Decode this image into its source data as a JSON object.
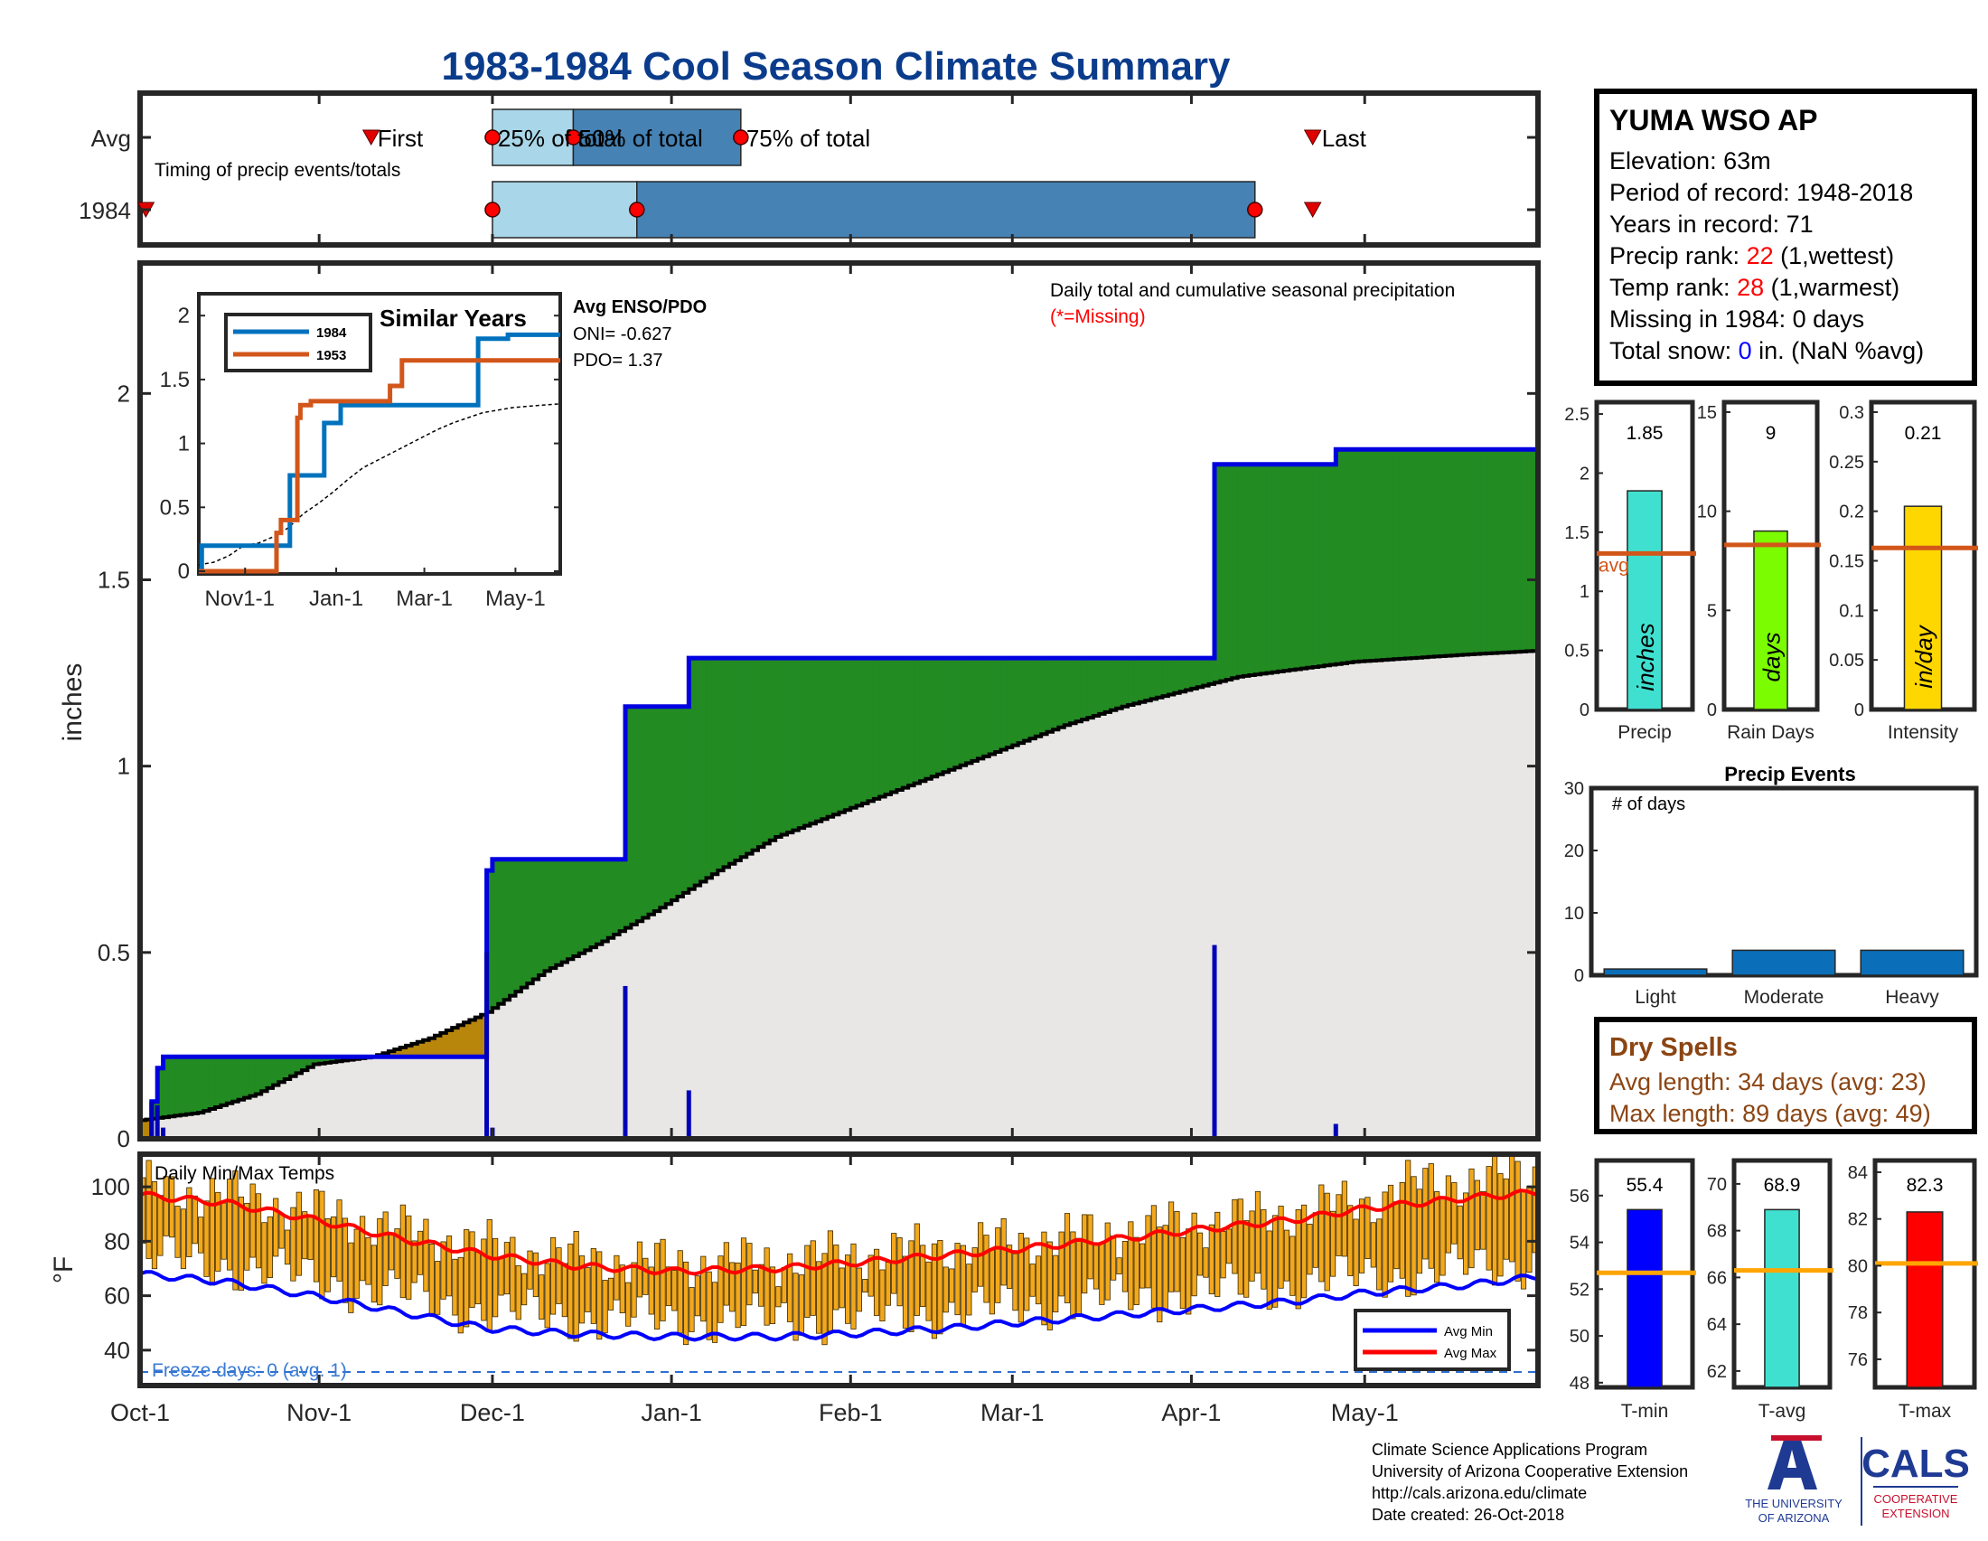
{
  "title": "1983-1984 Cool Season Climate Summary",
  "colors": {
    "title_blue": "#0b3c8c",
    "light_blue": "#a9d6e8",
    "mid_blue": "#4682b4",
    "green": "#228b22",
    "gray_fill": "#e8e7e6",
    "deficit_brown": "#b8860b",
    "cum_blue": "#0000e0",
    "orange_line": "#d2561a",
    "red": "#ff0000",
    "brown_text": "#8b4513",
    "temp_bar": "#f3a81c"
  },
  "timing": {
    "label": "Timing of precip events/totals",
    "rows": [
      "Avg",
      "1984"
    ],
    "avg_markers": {
      "first": "First",
      "p25": "25% of total",
      "p50": "50% of total",
      "p75": "75% of total",
      "last": "Last"
    },
    "avg_days": {
      "first": 40,
      "p25": 61,
      "p50": 75,
      "p75": 104,
      "last": 203
    },
    "y1984_days": {
      "first": 1,
      "p25": 61,
      "p50": 86,
      "p75": 193,
      "last": 203
    }
  },
  "station": {
    "name": "YUMA WSO AP",
    "elevation": "Elevation: 63m",
    "period": "Period of record: 1948-2018",
    "years": "Years in record: 71",
    "precip_rank_label": "Precip rank: ",
    "precip_rank_value": "22",
    "precip_rank_note": " (1,wettest)",
    "temp_rank_label": "Temp rank: ",
    "temp_rank_value": "28",
    "temp_rank_note": " (1,warmest)",
    "missing": "Missing in 1984: 0 days",
    "snow_label": "Total snow: ",
    "snow_value": "0",
    "snow_note": " in. (NaN %avg)"
  },
  "main_panel": {
    "ylabel": "inches",
    "annotation": "Daily total and cumulative seasonal precipitation",
    "missing_note": "(*=Missing)",
    "yticks": [
      "0",
      "0.5",
      "1",
      "1.5",
      "2"
    ],
    "xticks": [
      "Oct-1",
      "Nov-1",
      "Dec-1",
      "Jan-1",
      "Feb-1",
      "Mar-1",
      "Apr-1",
      "May-1"
    ],
    "xtick_days": [
      0,
      31,
      61,
      92,
      123,
      151,
      182,
      212
    ],
    "ylim": [
      0,
      2.35
    ],
    "xlim": [
      0,
      242
    ]
  },
  "inset": {
    "title": "Similar Years",
    "legend": [
      "1984",
      "1953"
    ],
    "yticks": [
      "0",
      "0.5",
      "1",
      "1.5",
      "2"
    ],
    "xticks": [
      "Nov1-1",
      "Jan-1",
      "Mar-1",
      "May-1"
    ],
    "enso_title": "Avg ENSO/PDO",
    "oni": "ONI= -0.627",
    "pdo": "PDO= 1.37"
  },
  "side_bars": [
    {
      "label": "Precip",
      "unit": "inches",
      "value_text": "1.85",
      "value": 1.85,
      "avg": 1.32,
      "avg_label": "avg",
      "ymax": 2.6,
      "ticks": [
        "0",
        "0.5",
        "1",
        "1.5",
        "2",
        "2.5"
      ],
      "color": "#40e0d0"
    },
    {
      "label": "Rain Days",
      "unit": "days",
      "value_text": "9",
      "value": 9,
      "avg": 8.3,
      "ymax": 15.5,
      "ticks": [
        "0",
        "5",
        "10",
        "15"
      ],
      "color": "#7cfc00"
    },
    {
      "label": "Intensity",
      "unit": "in/day",
      "value_text": "0.21",
      "value": 0.205,
      "avg": 0.163,
      "ymax": 0.31,
      "ticks": [
        "0",
        "0.05",
        "0.1",
        "0.15",
        "0.2",
        "0.25",
        "0.3"
      ],
      "color": "#ffd700"
    }
  ],
  "precip_events": {
    "title": "Precip Events",
    "ylabel": "# of days",
    "categories": [
      "Light",
      "Moderate",
      "Heavy"
    ],
    "values": [
      1,
      4,
      4
    ],
    "yticks": [
      "0",
      "10",
      "20",
      "30"
    ],
    "ymax": 30
  },
  "dry_spells": {
    "title": "Dry Spells",
    "avg": "Avg length: 34 days (avg: 23)",
    "max": "Max length: 89 days (avg: 49)"
  },
  "temp_panel": {
    "label": "Daily Min/Max Temps",
    "ylabel": "°F",
    "yticks": [
      "40",
      "60",
      "80",
      "100"
    ],
    "freeze": "Freeze days: 0 (avg. 1)",
    "legend": [
      "Avg Min",
      "Avg Max"
    ],
    "ylim": [
      27,
      112
    ]
  },
  "temp_bars": [
    {
      "label": "T-min",
      "value_text": "55.4",
      "value": 55.4,
      "avg": 52.7,
      "ymin": 47.8,
      "ymax": 57.5,
      "ticks": [
        "48",
        "50",
        "52",
        "54",
        "56"
      ],
      "color": "#0000ff"
    },
    {
      "label": "T-avg",
      "value_text": "68.9",
      "value": 68.9,
      "avg": 66.3,
      "ymin": 61.3,
      "ymax": 71.0,
      "ticks": [
        "62",
        "64",
        "66",
        "68",
        "70"
      ],
      "color": "#40e0d0"
    },
    {
      "label": "T-max",
      "value_text": "82.3",
      "value": 82.3,
      "avg": 80.1,
      "ymin": 74.8,
      "ymax": 84.5,
      "ticks": [
        "76",
        "78",
        "80",
        "82",
        "84"
      ],
      "color": "#ff0000"
    }
  ],
  "footer": {
    "line1": "Climate Science Applications Program",
    "line2": "University of Arizona Cooperative Extension",
    "line3": "http://cals.arizona.edu/climate",
    "line4": " Date created: 26-Oct-2018",
    "ua_line1": "THE UNIVERSITY",
    "ua_line2": "OF ARIZONA",
    "cals": "CALS",
    "cals_sub1": "COOPERATIVE",
    "cals_sub2": "EXTENSION"
  },
  "chart_data": {
    "type": "area",
    "title": "1983-1984 Cool Season Climate Summary",
    "ylabel": "inches",
    "x_unit": "day of season (0 = Oct-1)",
    "ylim": [
      0,
      2.35
    ],
    "daily_precip": [
      {
        "x": 2,
        "y": 0.1
      },
      {
        "x": 3,
        "y": 0.09
      },
      {
        "x": 4,
        "y": 0.03
      },
      {
        "x": 60,
        "y": 0.5
      },
      {
        "x": 61,
        "y": 0.03
      },
      {
        "x": 84,
        "y": 0.41
      },
      {
        "x": 95,
        "y": 0.13
      },
      {
        "x": 186,
        "y": 0.52
      },
      {
        "x": 207,
        "y": 0.04
      }
    ],
    "cumulative_1984": [
      {
        "x": 0,
        "y": 0.0
      },
      {
        "x": 2,
        "y": 0.1
      },
      {
        "x": 3,
        "y": 0.19
      },
      {
        "x": 4,
        "y": 0.22
      },
      {
        "x": 60,
        "y": 0.72
      },
      {
        "x": 61,
        "y": 0.75
      },
      {
        "x": 84,
        "y": 1.16
      },
      {
        "x": 95,
        "y": 1.29
      },
      {
        "x": 186,
        "y": 1.81
      },
      {
        "x": 207,
        "y": 1.85
      },
      {
        "x": 242,
        "y": 1.85
      }
    ],
    "cumulative_avg": [
      {
        "x": 0,
        "y": 0.05
      },
      {
        "x": 10,
        "y": 0.07
      },
      {
        "x": 20,
        "y": 0.12
      },
      {
        "x": 30,
        "y": 0.2
      },
      {
        "x": 40,
        "y": 0.22
      },
      {
        "x": 50,
        "y": 0.27
      },
      {
        "x": 60,
        "y": 0.34
      },
      {
        "x": 70,
        "y": 0.45
      },
      {
        "x": 80,
        "y": 0.53
      },
      {
        "x": 90,
        "y": 0.62
      },
      {
        "x": 100,
        "y": 0.72
      },
      {
        "x": 110,
        "y": 0.81
      },
      {
        "x": 120,
        "y": 0.87
      },
      {
        "x": 130,
        "y": 0.93
      },
      {
        "x": 140,
        "y": 0.99
      },
      {
        "x": 150,
        "y": 1.05
      },
      {
        "x": 160,
        "y": 1.11
      },
      {
        "x": 170,
        "y": 1.16
      },
      {
        "x": 180,
        "y": 1.2
      },
      {
        "x": 190,
        "y": 1.24
      },
      {
        "x": 200,
        "y": 1.26
      },
      {
        "x": 210,
        "y": 1.28
      },
      {
        "x": 220,
        "y": 1.29
      },
      {
        "x": 230,
        "y": 1.3
      },
      {
        "x": 242,
        "y": 1.31
      }
    ],
    "inset_series": [
      {
        "name": "1984",
        "points": [
          [
            0,
            0.0
          ],
          [
            2,
            0.2
          ],
          [
            60,
            0.2
          ],
          [
            61,
            0.75
          ],
          [
            84,
            1.16
          ],
          [
            95,
            1.3
          ],
          [
            186,
            1.3
          ],
          [
            187,
            1.82
          ],
          [
            207,
            1.85
          ],
          [
            242,
            1.85
          ]
        ]
      },
      {
        "name": "1953",
        "points": [
          [
            0,
            0.0
          ],
          [
            50,
            0.0
          ],
          [
            52,
            0.3
          ],
          [
            55,
            0.4
          ],
          [
            63,
            0.4
          ],
          [
            66,
            1.2
          ],
          [
            68,
            1.3
          ],
          [
            75,
            1.33
          ],
          [
            125,
            1.33
          ],
          [
            128,
            1.45
          ],
          [
            135,
            1.45
          ],
          [
            136,
            1.65
          ],
          [
            242,
            1.65
          ]
        ]
      }
    ],
    "avg_min": [
      {
        "x": 0,
        "y": 68
      },
      {
        "x": 15,
        "y": 65
      },
      {
        "x": 30,
        "y": 60
      },
      {
        "x": 45,
        "y": 54
      },
      {
        "x": 60,
        "y": 48
      },
      {
        "x": 75,
        "y": 46
      },
      {
        "x": 92,
        "y": 45
      },
      {
        "x": 110,
        "y": 45
      },
      {
        "x": 123,
        "y": 46
      },
      {
        "x": 140,
        "y": 48
      },
      {
        "x": 151,
        "y": 50
      },
      {
        "x": 170,
        "y": 53
      },
      {
        "x": 182,
        "y": 55
      },
      {
        "x": 200,
        "y": 58
      },
      {
        "x": 212,
        "y": 61
      },
      {
        "x": 230,
        "y": 64
      },
      {
        "x": 242,
        "y": 67
      }
    ],
    "avg_max": [
      {
        "x": 0,
        "y": 97
      },
      {
        "x": 15,
        "y": 94
      },
      {
        "x": 30,
        "y": 88
      },
      {
        "x": 45,
        "y": 81
      },
      {
        "x": 60,
        "y": 75
      },
      {
        "x": 75,
        "y": 71
      },
      {
        "x": 92,
        "y": 69
      },
      {
        "x": 110,
        "y": 70
      },
      {
        "x": 123,
        "y": 72
      },
      {
        "x": 140,
        "y": 75
      },
      {
        "x": 151,
        "y": 77
      },
      {
        "x": 170,
        "y": 81
      },
      {
        "x": 182,
        "y": 84
      },
      {
        "x": 200,
        "y": 88
      },
      {
        "x": 212,
        "y": 92
      },
      {
        "x": 230,
        "y": 96
      },
      {
        "x": 242,
        "y": 98
      }
    ],
    "freeze_line": 32
  }
}
